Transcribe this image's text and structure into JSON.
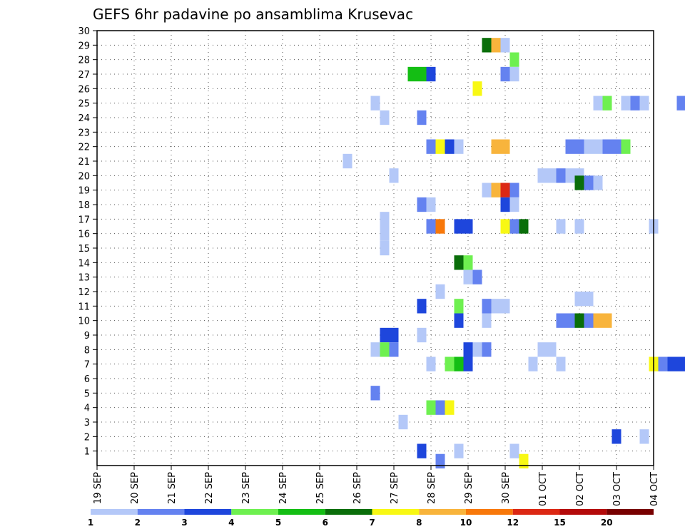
{
  "chart_data": {
    "type": "heatmap",
    "title": "GEFS 6hr padavine po ansamblima Krusevac",
    "x_labels": [
      "19 SEP",
      "20 SEP",
      "21 SEP",
      "22 SEP",
      "23 SEP",
      "24 SEP",
      "25 SEP",
      "26 SEP",
      "27 SEP",
      "28 SEP",
      "29 SEP",
      "30 SEP",
      "01 OCT",
      "02 OCT",
      "03 OCT",
      "04 OCT"
    ],
    "y_ticks": [
      1,
      2,
      3,
      4,
      5,
      6,
      7,
      8,
      9,
      10,
      11,
      12,
      13,
      14,
      15,
      16,
      17,
      18,
      19,
      20,
      21,
      22,
      23,
      24,
      25,
      26,
      27,
      28,
      29,
      30
    ],
    "ylabel": "",
    "xlabel": "",
    "legend": {
      "labels": [
        "1",
        "2",
        "3",
        "4",
        "5",
        "6",
        "7",
        "8",
        "10",
        "12",
        "15",
        "20"
      ],
      "colors": [
        "#b4c8f8",
        "#6482f0",
        "#1e46dc",
        "#6ef050",
        "#14be14",
        "#0a6e0a",
        "#f8f814",
        "#f8b43c",
        "#f8780a",
        "#dc2814",
        "#b40a0a",
        "#780000"
      ]
    },
    "cells": [
      {
        "day": 7.5,
        "member": 25,
        "cls": 0
      },
      {
        "day": 7.75,
        "member": 24,
        "cls": 0
      },
      {
        "day": 6.75,
        "member": 21,
        "cls": 0
      },
      {
        "day": 7.75,
        "member": 17,
        "cls": 0
      },
      {
        "day": 7.75,
        "member": 16,
        "cls": 0
      },
      {
        "day": 7.75,
        "member": 15,
        "cls": 0
      },
      {
        "day": 8.0,
        "member": 20,
        "cls": 0
      },
      {
        "day": 8.75,
        "member": 24,
        "cls": 1
      },
      {
        "day": 8.5,
        "member": 27,
        "cls": 4
      },
      {
        "day": 8.75,
        "member": 27,
        "cls": 4
      },
      {
        "day": 9.0,
        "member": 27,
        "cls": 2
      },
      {
        "day": 9.0,
        "member": 22,
        "cls": 1
      },
      {
        "day": 9.25,
        "member": 22,
        "cls": 6
      },
      {
        "day": 9.5,
        "member": 22,
        "cls": 2
      },
      {
        "day": 9.75,
        "member": 22,
        "cls": 0
      },
      {
        "day": 8.75,
        "member": 18,
        "cls": 1
      },
      {
        "day": 9.0,
        "member": 18,
        "cls": 0
      },
      {
        "day": 9.0,
        "member": 16.5,
        "cls": 1
      },
      {
        "day": 9.25,
        "member": 16.5,
        "cls": 8
      },
      {
        "day": 9.75,
        "member": 16.5,
        "cls": 2
      },
      {
        "day": 10.0,
        "member": 16.5,
        "cls": 2
      },
      {
        "day": 10.25,
        "member": 26,
        "cls": 6
      },
      {
        "day": 10.5,
        "member": 29,
        "cls": 5
      },
      {
        "day": 10.75,
        "member": 29,
        "cls": 7
      },
      {
        "day": 11.0,
        "member": 29,
        "cls": 0
      },
      {
        "day": 11.25,
        "member": 28,
        "cls": 3
      },
      {
        "day": 11.25,
        "member": 27,
        "cls": 0
      },
      {
        "day": 11.0,
        "member": 27,
        "cls": 1
      },
      {
        "day": 10.75,
        "member": 22,
        "cls": 7
      },
      {
        "day": 11.0,
        "member": 22,
        "cls": 7
      },
      {
        "day": 10.5,
        "member": 19,
        "cls": 0
      },
      {
        "day": 10.75,
        "member": 19,
        "cls": 7
      },
      {
        "day": 11.0,
        "member": 19,
        "cls": 9
      },
      {
        "day": 11.25,
        "member": 19,
        "cls": 1
      },
      {
        "day": 11.0,
        "member": 18,
        "cls": 2
      },
      {
        "day": 11.25,
        "member": 18,
        "cls": 0
      },
      {
        "day": 11.0,
        "member": 16.5,
        "cls": 6
      },
      {
        "day": 11.25,
        "member": 16.5,
        "cls": 1
      },
      {
        "day": 11.5,
        "member": 16.5,
        "cls": 5
      },
      {
        "day": 12.0,
        "member": 20,
        "cls": 0
      },
      {
        "day": 12.25,
        "member": 20,
        "cls": 0
      },
      {
        "day": 12.5,
        "member": 20,
        "cls": 1
      },
      {
        "day": 12.75,
        "member": 20,
        "cls": 0
      },
      {
        "day": 13.0,
        "member": 20,
        "cls": 0
      },
      {
        "day": 13.0,
        "member": 19.5,
        "cls": 5
      },
      {
        "day": 13.25,
        "member": 19.5,
        "cls": 1
      },
      {
        "day": 13.5,
        "member": 19.5,
        "cls": 0
      },
      {
        "day": 12.75,
        "member": 22,
        "cls": 1
      },
      {
        "day": 13.0,
        "member": 22,
        "cls": 1
      },
      {
        "day": 13.25,
        "member": 22,
        "cls": 0
      },
      {
        "day": 13.5,
        "member": 22,
        "cls": 0
      },
      {
        "day": 13.75,
        "member": 22,
        "cls": 1
      },
      {
        "day": 14.0,
        "member": 22,
        "cls": 1
      },
      {
        "day": 14.25,
        "member": 22,
        "cls": 3
      },
      {
        "day": 13.5,
        "member": 25,
        "cls": 0
      },
      {
        "day": 13.75,
        "member": 25,
        "cls": 3
      },
      {
        "day": 14.25,
        "member": 25,
        "cls": 0
      },
      {
        "day": 14.5,
        "member": 25,
        "cls": 1
      },
      {
        "day": 14.75,
        "member": 25,
        "cls": 0
      },
      {
        "day": 15.75,
        "member": 25,
        "cls": 1
      },
      {
        "day": 12.5,
        "member": 16.5,
        "cls": 0
      },
      {
        "day": 13.0,
        "member": 16.5,
        "cls": 0
      },
      {
        "day": 15.0,
        "member": 16.5,
        "cls": 0
      },
      {
        "day": 9.75,
        "member": 14,
        "cls": 5
      },
      {
        "day": 10.0,
        "member": 14,
        "cls": 3
      },
      {
        "day": 10.0,
        "member": 13,
        "cls": 0
      },
      {
        "day": 10.25,
        "member": 13,
        "cls": 1
      },
      {
        "day": 9.25,
        "member": 12,
        "cls": 0
      },
      {
        "day": 8.75,
        "member": 11,
        "cls": 2
      },
      {
        "day": 9.75,
        "member": 11,
        "cls": 3
      },
      {
        "day": 10.5,
        "member": 11,
        "cls": 1
      },
      {
        "day": 10.75,
        "member": 11,
        "cls": 0
      },
      {
        "day": 11.0,
        "member": 11,
        "cls": 0
      },
      {
        "day": 9.75,
        "member": 10,
        "cls": 2
      },
      {
        "day": 10.5,
        "member": 10,
        "cls": 0
      },
      {
        "day": 12.5,
        "member": 10,
        "cls": 1
      },
      {
        "day": 12.75,
        "member": 10,
        "cls": 1
      },
      {
        "day": 13.0,
        "member": 10,
        "cls": 5
      },
      {
        "day": 13.25,
        "member": 10,
        "cls": 1
      },
      {
        "day": 13.5,
        "member": 10,
        "cls": 7
      },
      {
        "day": 13.75,
        "member": 10,
        "cls": 7
      },
      {
        "day": 13.0,
        "member": 11.5,
        "cls": 0
      },
      {
        "day": 13.25,
        "member": 11.5,
        "cls": 0
      },
      {
        "day": 7.75,
        "member": 9,
        "cls": 2
      },
      {
        "day": 8.0,
        "member": 9,
        "cls": 2
      },
      {
        "day": 8.75,
        "member": 9,
        "cls": 0
      },
      {
        "day": 7.5,
        "member": 8,
        "cls": 0
      },
      {
        "day": 7.75,
        "member": 8,
        "cls": 3
      },
      {
        "day": 8.0,
        "member": 8,
        "cls": 1
      },
      {
        "day": 10.0,
        "member": 8,
        "cls": 2
      },
      {
        "day": 10.25,
        "member": 8,
        "cls": 0
      },
      {
        "day": 10.5,
        "member": 8,
        "cls": 1
      },
      {
        "day": 12.0,
        "member": 8,
        "cls": 0
      },
      {
        "day": 12.25,
        "member": 8,
        "cls": 0
      },
      {
        "day": 9.0,
        "member": 7,
        "cls": 0
      },
      {
        "day": 9.5,
        "member": 7,
        "cls": 3
      },
      {
        "day": 9.75,
        "member": 7,
        "cls": 4
      },
      {
        "day": 10.0,
        "member": 7,
        "cls": 2
      },
      {
        "day": 11.75,
        "member": 7,
        "cls": 0
      },
      {
        "day": 12.5,
        "member": 7,
        "cls": 0
      },
      {
        "day": 15.0,
        "member": 7,
        "cls": 6
      },
      {
        "day": 15.25,
        "member": 7,
        "cls": 1
      },
      {
        "day": 15.5,
        "member": 7,
        "cls": 2
      },
      {
        "day": 15.75,
        "member": 7,
        "cls": 2
      },
      {
        "day": 7.5,
        "member": 5,
        "cls": 1
      },
      {
        "day": 9.0,
        "member": 4,
        "cls": 3
      },
      {
        "day": 9.25,
        "member": 4,
        "cls": 1
      },
      {
        "day": 9.5,
        "member": 4,
        "cls": 6
      },
      {
        "day": 8.25,
        "member": 3,
        "cls": 0
      },
      {
        "day": 14.0,
        "member": 2,
        "cls": 2
      },
      {
        "day": 14.75,
        "member": 2,
        "cls": 0
      },
      {
        "day": 8.75,
        "member": 1,
        "cls": 2
      },
      {
        "day": 9.75,
        "member": 1,
        "cls": 0
      },
      {
        "day": 11.25,
        "member": 1,
        "cls": 0
      },
      {
        "day": 9.25,
        "member": 0.3,
        "cls": 1
      },
      {
        "day": 11.5,
        "member": 0.3,
        "cls": 6
      }
    ]
  }
}
